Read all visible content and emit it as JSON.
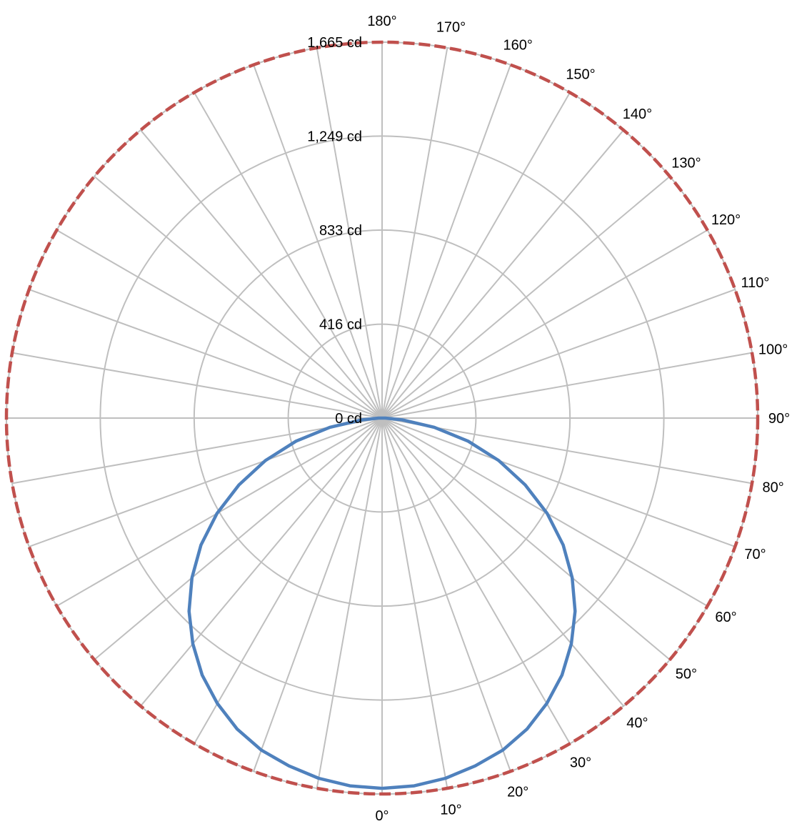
{
  "chart_data": {
    "type": "polar-line",
    "r_range": [
      0,
      1665
    ],
    "r_ticks": [
      {
        "value": 0,
        "label": "0 cd"
      },
      {
        "value": 416,
        "label": "416 cd"
      },
      {
        "value": 833,
        "label": "833 cd"
      },
      {
        "value": 1249,
        "label": "1,249 cd"
      },
      {
        "value": 1665,
        "label": "1,665 cd"
      }
    ],
    "angle_labels": [
      "0°",
      "10°",
      "20°",
      "30°",
      "40°",
      "50°",
      "60°",
      "70°",
      "80°",
      "90°",
      "100°",
      "110°",
      "120°",
      "130°",
      "140°",
      "150°",
      "160°",
      "170°",
      "180°"
    ],
    "angle_zero_direction": "bottom",
    "angle_direction": "counterclockwise",
    "grid": true,
    "series": [
      {
        "style": "solid",
        "color": "#4f81bd",
        "angles": [
          0,
          5,
          10,
          15,
          20,
          25,
          30,
          35,
          40,
          45,
          50,
          55,
          60,
          65,
          70,
          75,
          80,
          85,
          90
        ],
        "values": [
          1640,
          1635,
          1620,
          1595,
          1565,
          1520,
          1460,
          1390,
          1305,
          1210,
          1100,
          980,
          845,
          700,
          550,
          395,
          235,
          90,
          15
        ]
      },
      {
        "style": "dashed",
        "color": "#c0504d",
        "angles": [
          0,
          180
        ],
        "values": [
          1665,
          1665
        ],
        "full_circle": true
      }
    ]
  },
  "colors": {
    "grid": "#bfbfbf",
    "series_solid": "#4f81bd",
    "series_dashed": "#c0504d"
  }
}
